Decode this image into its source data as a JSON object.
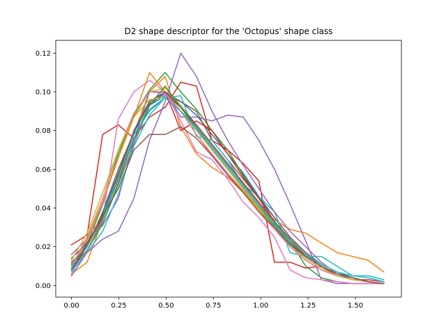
{
  "chart_data": {
    "type": "line",
    "title": "D2 shape descriptor for the 'Octopus' shape class",
    "xlabel": "",
    "ylabel": "",
    "xlim": [
      -0.083,
      1.743
    ],
    "ylim": [
      -0.006,
      0.1266
    ],
    "xticks": [
      0.0,
      0.25,
      0.5,
      0.75,
      1.0,
      1.25,
      1.5
    ],
    "xtick_labels": [
      "0.00",
      "0.25",
      "0.50",
      "0.75",
      "1.00",
      "1.25",
      "1.50"
    ],
    "yticks": [
      0.0,
      0.02,
      0.04,
      0.06,
      0.08,
      0.1,
      0.12
    ],
    "ytick_labels": [
      "0.00",
      "0.02",
      "0.04",
      "0.06",
      "0.08",
      "0.10",
      "0.12"
    ],
    "grid": false,
    "legend": "none",
    "x": [
      0.0,
      0.0825,
      0.165,
      0.2475,
      0.33,
      0.4125,
      0.495,
      0.5775,
      0.66,
      0.7425,
      0.825,
      0.9075,
      0.99,
      1.0725,
      1.155,
      1.2375,
      1.32,
      1.4025,
      1.485,
      1.5675,
      1.65
    ],
    "series": [
      {
        "color": "#1f77b4",
        "values": [
          0.008,
          0.022,
          0.035,
          0.055,
          0.075,
          0.093,
          0.098,
          0.095,
          0.088,
          0.078,
          0.068,
          0.058,
          0.046,
          0.035,
          0.025,
          0.017,
          0.011,
          0.007,
          0.004,
          0.002,
          0.001
        ]
      },
      {
        "color": "#ff7f0e",
        "values": [
          0.006,
          0.012,
          0.034,
          0.058,
          0.079,
          0.1,
          0.108,
          0.082,
          0.068,
          0.061,
          0.056,
          0.048,
          0.04,
          0.034,
          0.029,
          0.027,
          0.022,
          0.017,
          0.015,
          0.013,
          0.007
        ]
      },
      {
        "color": "#2ca02c",
        "values": [
          0.009,
          0.021,
          0.042,
          0.068,
          0.088,
          0.101,
          0.11,
          0.1,
          0.091,
          0.08,
          0.07,
          0.057,
          0.045,
          0.033,
          0.023,
          0.01,
          0.004,
          0.002,
          0.001,
          0.001,
          0.001
        ]
      },
      {
        "color": "#d62728",
        "values": [
          0.021,
          0.026,
          0.078,
          0.083,
          0.076,
          0.087,
          0.092,
          0.105,
          0.103,
          0.075,
          0.07,
          0.063,
          0.054,
          0.012,
          0.012,
          0.009,
          0.01,
          0.005,
          0.003,
          0.003,
          0.002
        ]
      },
      {
        "color": "#9467bd",
        "values": [
          0.016,
          0.024,
          0.031,
          0.045,
          0.075,
          0.1,
          0.1,
          0.087,
          0.087,
          0.085,
          0.088,
          0.087,
          0.075,
          0.06,
          0.042,
          0.023,
          0.003,
          0.001,
          0.001,
          0.001,
          0.001
        ]
      },
      {
        "color": "#8c564b",
        "values": [
          0.012,
          0.02,
          0.038,
          0.06,
          0.079,
          0.095,
          0.1,
          0.095,
          0.09,
          0.075,
          0.065,
          0.055,
          0.045,
          0.035,
          0.025,
          0.017,
          0.011,
          0.007,
          0.004,
          0.002,
          0.001
        ]
      },
      {
        "color": "#e377c2",
        "values": [
          0.005,
          0.025,
          0.035,
          0.086,
          0.1,
          0.106,
          0.1,
          0.085,
          0.069,
          0.065,
          0.055,
          0.043,
          0.035,
          0.025,
          0.008,
          0.004,
          0.003,
          0.002,
          0.001,
          0.001,
          0.001
        ]
      },
      {
        "color": "#7f7f7f",
        "values": [
          0.009,
          0.018,
          0.032,
          0.052,
          0.073,
          0.093,
          0.1,
          0.093,
          0.083,
          0.073,
          0.063,
          0.053,
          0.042,
          0.032,
          0.023,
          0.015,
          0.01,
          0.006,
          0.004,
          0.002,
          0.001
        ]
      },
      {
        "color": "#bcbd22",
        "values": [
          0.01,
          0.023,
          0.043,
          0.066,
          0.087,
          0.1,
          0.102,
          0.093,
          0.082,
          0.07,
          0.06,
          0.05,
          0.04,
          0.03,
          0.02,
          0.013,
          0.008,
          0.005,
          0.003,
          0.002,
          0.001
        ]
      },
      {
        "color": "#17becf",
        "values": [
          0.007,
          0.017,
          0.028,
          0.047,
          0.072,
          0.088,
          0.097,
          0.098,
          0.077,
          0.075,
          0.065,
          0.052,
          0.046,
          0.038,
          0.017,
          0.015,
          0.015,
          0.01,
          0.005,
          0.005,
          0.003
        ]
      },
      {
        "color": "#1f77b4",
        "values": [
          0.011,
          0.02,
          0.037,
          0.058,
          0.079,
          0.094,
          0.099,
          0.092,
          0.082,
          0.07,
          0.06,
          0.05,
          0.04,
          0.031,
          0.022,
          0.015,
          0.01,
          0.006,
          0.004,
          0.002,
          0.001
        ]
      },
      {
        "color": "#ff7f0e",
        "values": [
          0.01,
          0.024,
          0.043,
          0.066,
          0.087,
          0.11,
          0.1,
          0.09,
          0.078,
          0.067,
          0.058,
          0.049,
          0.039,
          0.03,
          0.021,
          0.014,
          0.009,
          0.005,
          0.003,
          0.002,
          0.001
        ]
      },
      {
        "color": "#2ca02c",
        "values": [
          0.01,
          0.018,
          0.032,
          0.053,
          0.076,
          0.093,
          0.103,
          0.092,
          0.081,
          0.07,
          0.06,
          0.05,
          0.04,
          0.031,
          0.022,
          0.015,
          0.01,
          0.006,
          0.004,
          0.002,
          0.001
        ]
      },
      {
        "color": "#d62728",
        "values": [
          0.008,
          0.02,
          0.035,
          0.057,
          0.08,
          0.095,
          0.1,
          0.08,
          0.085,
          0.08,
          0.068,
          0.056,
          0.045,
          0.033,
          0.023,
          0.015,
          0.01,
          0.006,
          0.004,
          0.002,
          0.001
        ]
      },
      {
        "color": "#9467bd",
        "values": [
          0.005,
          0.017,
          0.024,
          0.028,
          0.045,
          0.075,
          0.095,
          0.12,
          0.108,
          0.09,
          0.075,
          0.062,
          0.05,
          0.038,
          0.028,
          0.02,
          0.012,
          0.006,
          0.003,
          0.002,
          0.001
        ]
      },
      {
        "color": "#8c564b",
        "values": [
          0.014,
          0.022,
          0.035,
          0.056,
          0.08,
          0.095,
          0.1,
          0.092,
          0.083,
          0.073,
          0.063,
          0.053,
          0.043,
          0.033,
          0.024,
          0.016,
          0.01,
          0.006,
          0.004,
          0.002,
          0.001
        ]
      },
      {
        "color": "#e377c2",
        "values": [
          0.01,
          0.025,
          0.045,
          0.07,
          0.089,
          0.1,
          0.099,
          0.09,
          0.078,
          0.068,
          0.058,
          0.048,
          0.038,
          0.029,
          0.02,
          0.013,
          0.008,
          0.005,
          0.003,
          0.002,
          0.001
        ]
      },
      {
        "color": "#7f7f7f",
        "values": [
          0.008,
          0.018,
          0.034,
          0.055,
          0.076,
          0.091,
          0.097,
          0.09,
          0.082,
          0.072,
          0.062,
          0.052,
          0.042,
          0.032,
          0.023,
          0.016,
          0.01,
          0.006,
          0.004,
          0.002,
          0.001
        ]
      },
      {
        "color": "#bcbd22",
        "values": [
          0.013,
          0.027,
          0.048,
          0.07,
          0.087,
          0.096,
          0.097,
          0.09,
          0.08,
          0.07,
          0.06,
          0.05,
          0.04,
          0.03,
          0.021,
          0.014,
          0.009,
          0.005,
          0.003,
          0.002,
          0.001
        ]
      },
      {
        "color": "#17becf",
        "values": [
          0.009,
          0.02,
          0.036,
          0.056,
          0.078,
          0.09,
          0.097,
          0.09,
          0.081,
          0.071,
          0.061,
          0.051,
          0.041,
          0.032,
          0.023,
          0.016,
          0.011,
          0.007,
          0.005,
          0.004,
          0.002
        ]
      },
      {
        "color": "#8c564b",
        "values": [
          0.008,
          0.021,
          0.036,
          0.05,
          0.07,
          0.078,
          0.078,
          0.082,
          0.076,
          0.067,
          0.057,
          0.048,
          0.038,
          0.03,
          0.021,
          0.015,
          0.01,
          0.006,
          0.004,
          0.002,
          0.001
        ]
      }
    ]
  }
}
